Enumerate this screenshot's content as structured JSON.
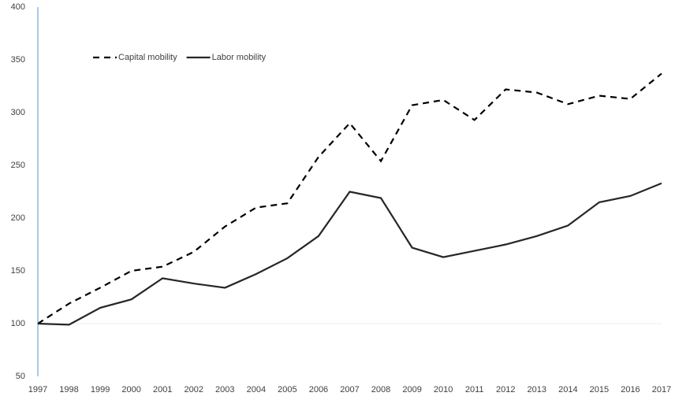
{
  "chart_data": {
    "type": "line",
    "categories": [
      "1997",
      "1998",
      "1999",
      "2000",
      "2001",
      "2002",
      "2003",
      "2004",
      "2005",
      "2006",
      "2007",
      "2008",
      "2009",
      "2010",
      "2011",
      "2012",
      "2013",
      "2014",
      "2015",
      "2016",
      "2017"
    ],
    "series": [
      {
        "name": "Capital mobility",
        "color": "#000000",
        "dash": true,
        "values": [
          100,
          119,
          134,
          150,
          154,
          168,
          192,
          210,
          214,
          258,
          290,
          254,
          307,
          312,
          293,
          322,
          319,
          308,
          316,
          313,
          337
        ]
      },
      {
        "name": "Labor mobility",
        "color": "#262626",
        "dash": false,
        "values": [
          100,
          99,
          115,
          123,
          143,
          138,
          134,
          147,
          162,
          183,
          225,
          219,
          172,
          163,
          169,
          175,
          183,
          193,
          215,
          221,
          233
        ]
      }
    ],
    "ylim": [
      50,
      400
    ],
    "yticks": [
      50,
      100,
      150,
      200,
      250,
      300,
      350,
      400
    ],
    "grid": false,
    "legend": "top-left"
  }
}
